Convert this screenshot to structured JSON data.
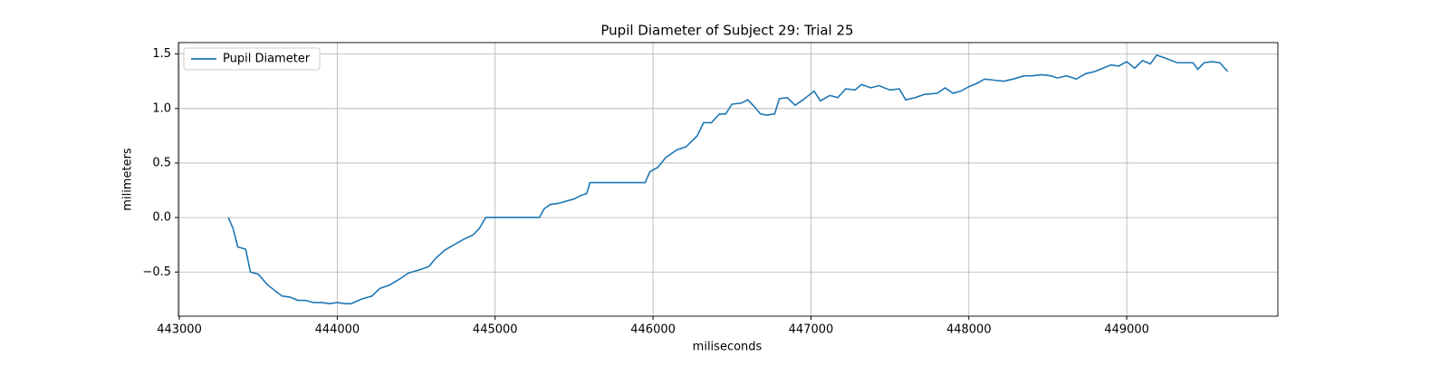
{
  "chart_data": {
    "type": "line",
    "title": "Pupil Diameter of Subject 29: Trial 25",
    "xlabel": "miliseconds",
    "ylabel": "milimeters",
    "x": [
      443310,
      443340,
      443370,
      443420,
      443450,
      443500,
      443560,
      443650,
      443700,
      443750,
      443800,
      443850,
      443900,
      443950,
      444000,
      444050,
      444090,
      444150,
      444220,
      444270,
      444330,
      444400,
      444450,
      444520,
      444580,
      444620,
      444680,
      444740,
      444800,
      444860,
      444900,
      444920,
      444940,
      445280,
      445310,
      445350,
      445400,
      445450,
      445500,
      445540,
      445580,
      445600,
      445950,
      445980,
      446030,
      446080,
      446150,
      446210,
      446280,
      446320,
      446370,
      446420,
      446460,
      446500,
      446560,
      446600,
      446640,
      446680,
      446720,
      446770,
      446800,
      446850,
      446900,
      446950,
      447020,
      447060,
      447120,
      447170,
      447220,
      447280,
      447320,
      447380,
      447430,
      447500,
      447560,
      447600,
      447660,
      447720,
      447800,
      447850,
      447900,
      447950,
      448000,
      448050,
      448100,
      448160,
      448220,
      448280,
      448350,
      448400,
      448460,
      448520,
      448560,
      448620,
      448680,
      448740,
      448800,
      448850,
      448900,
      448950,
      449000,
      449050,
      449100,
      449150,
      449190,
      449250,
      449320,
      449370,
      449420,
      449450,
      449490,
      449540,
      449590,
      449620,
      449640
    ],
    "series": [
      {
        "name": "Pupil Diameter",
        "color": "#1f77b4",
        "values": [
          0,
          -0.1,
          -0.27,
          -0.29,
          -0.5,
          -0.52,
          -0.62,
          -0.72,
          -0.73,
          -0.76,
          -0.76,
          -0.78,
          -0.78,
          -0.79,
          -0.78,
          -0.79,
          -0.79,
          -0.75,
          -0.72,
          -0.65,
          -0.62,
          -0.56,
          -0.51,
          -0.48,
          -0.45,
          -0.38,
          -0.3,
          -0.25,
          -0.2,
          -0.16,
          -0.1,
          -0.05,
          0,
          0,
          0.08,
          0.12,
          0.13,
          0.15,
          0.17,
          0.2,
          0.22,
          0.32,
          0.32,
          0.42,
          0.46,
          0.55,
          0.62,
          0.65,
          0.75,
          0.87,
          0.87,
          0.95,
          0.95,
          1.04,
          1.05,
          1.08,
          1.02,
          0.95,
          0.94,
          0.95,
          1.09,
          1.1,
          1.03,
          1.08,
          1.16,
          1.07,
          1.12,
          1.1,
          1.18,
          1.17,
          1.22,
          1.19,
          1.21,
          1.17,
          1.18,
          1.08,
          1.1,
          1.13,
          1.14,
          1.19,
          1.14,
          1.16,
          1.2,
          1.23,
          1.27,
          1.26,
          1.25,
          1.27,
          1.3,
          1.3,
          1.31,
          1.3,
          1.28,
          1.3,
          1.27,
          1.32,
          1.34,
          1.37,
          1.4,
          1.39,
          1.43,
          1.37,
          1.44,
          1.41,
          1.49,
          1.46,
          1.42,
          1.42,
          1.42,
          1.36,
          1.42,
          1.43,
          1.42,
          1.37,
          1.34
        ]
      }
    ],
    "xlim": [
      442994,
      449957
    ],
    "ylim": [
      -0.905,
      1.605
    ],
    "xticks": [
      443000,
      444000,
      445000,
      446000,
      447000,
      448000,
      449000
    ],
    "yticks": [
      {
        "value": -0.5,
        "label": "−0.5"
      },
      {
        "value": 0,
        "label": "0.0"
      },
      {
        "value": 0.5,
        "label": "0.5"
      },
      {
        "value": 1,
        "label": "1.0"
      },
      {
        "value": 1.5,
        "label": "1.5"
      }
    ],
    "grid": true,
    "legend": "upper left"
  }
}
